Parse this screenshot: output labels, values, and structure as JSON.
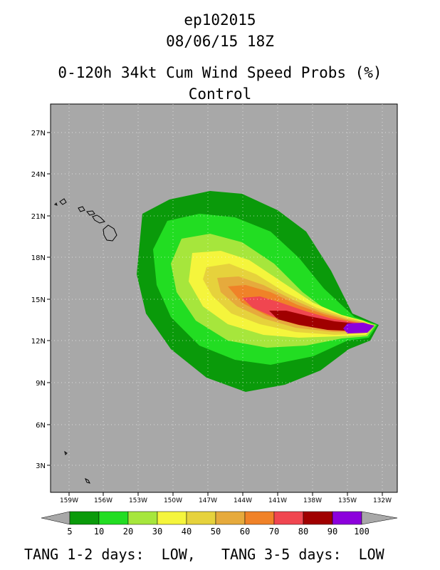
{
  "header": {
    "storm_id": "ep102015",
    "datetime": "08/06/15 18Z",
    "product": "0-120h 34kt Cum Wind Speed Probs (%)",
    "run": "Control"
  },
  "map": {
    "background_color": "#a8a8a8",
    "lat_labels": [
      "27N",
      "24N",
      "21N",
      "18N",
      "15N",
      "12N",
      "9N",
      "6N",
      "3N"
    ],
    "lon_labels": [
      "159W",
      "156W",
      "153W",
      "150W",
      "147W",
      "144W",
      "141W",
      "138W",
      "135W",
      "132W"
    ]
  },
  "legend": {
    "bins": [
      {
        "label": "5",
        "color": "#0a9a0a"
      },
      {
        "label": "10",
        "color": "#22dd22"
      },
      {
        "label": "20",
        "color": "#a6e63c"
      },
      {
        "label": "30",
        "color": "#f5f53c"
      },
      {
        "label": "40",
        "color": "#e6d23c"
      },
      {
        "label": "50",
        "color": "#e6aa3c"
      },
      {
        "label": "60",
        "color": "#f08228"
      },
      {
        "label": "70",
        "color": "#f04650"
      },
      {
        "label": "80",
        "color": "#a00000"
      },
      {
        "label": "90",
        "color": "#8c00dc"
      },
      {
        "label": "100",
        "color": ""
      }
    ]
  },
  "footer": {
    "text": "TANG 1-2 days:  LOW,   TANG 3-5 days:  LOW"
  }
}
